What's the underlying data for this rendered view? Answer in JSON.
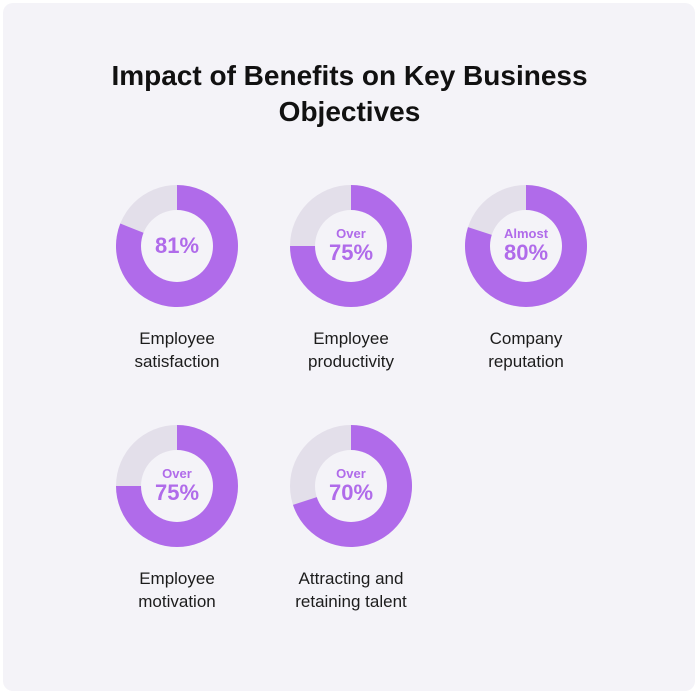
{
  "title_lines": [
    "Impact of Benefits on Key Business",
    "Objectives"
  ],
  "colors": {
    "fill": "#b06bea",
    "track": "#e3dfea",
    "hole": "#f4f3f8",
    "text": "#b06bea"
  },
  "chart_data": {
    "type": "pie",
    "variant": "donut",
    "title": "Impact of Benefits on Key Business Objectives",
    "items": [
      {
        "prefix": "",
        "value": 81,
        "value_label": "81%",
        "label_lines": [
          "Employee",
          "satisfaction"
        ]
      },
      {
        "prefix": "Over",
        "value": 75,
        "value_label": "75%",
        "label_lines": [
          "Employee",
          "productivity"
        ]
      },
      {
        "prefix": "Almost",
        "value": 80,
        "value_label": "80%",
        "label_lines": [
          "Company",
          "reputation"
        ]
      },
      {
        "prefix": "Over",
        "value": 75,
        "value_label": "75%",
        "label_lines": [
          "Employee",
          "motivation"
        ]
      },
      {
        "prefix": "Over",
        "value": 70,
        "value_label": "70%",
        "label_lines": [
          "Attracting and",
          "retaining talent"
        ]
      }
    ]
  }
}
